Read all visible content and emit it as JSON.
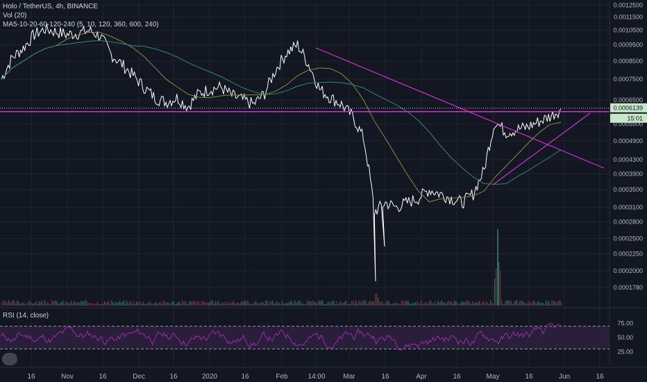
{
  "header": {
    "symbol_line": "Holo / TetherUS, 4h, BINANCE",
    "vol_line": "Vol (20)",
    "ma_line": "MA5-10-20-60-120-240 (5, 10, 120, 360, 600, 240)",
    "rsi_line": "RSI (14, close)"
  },
  "colors": {
    "background": "#131722",
    "price_line": "#ffffff",
    "ma_long": "#2e8c6e",
    "ma_mid": "#8c8c3e",
    "trendline": "#d631d6",
    "hline_solid": "#d631d6",
    "hline_dotted": "#c8c8c8",
    "rsi_line": "#9c2ab0",
    "rsi_band": "#2a1f3a",
    "grid": "#1f2330",
    "text": "#b2b5be",
    "price_badge": "#c8e6c9"
  },
  "price_axis": {
    "ticks": [
      "0.0012500",
      "0.0011500",
      "0.0010500",
      "0.0009500",
      "0.0008500",
      "0.0007500",
      "0.0006500",
      "0.0005500",
      "0.0004900",
      "0.0004300",
      "0.0003900",
      "0.0003500",
      "0.0003100",
      "0.0002800",
      "0.0002500",
      "0.0002250",
      "0.0002000",
      "0.0001780"
    ],
    "current_price": "0.0006139",
    "countdown": "15:01"
  },
  "rsi_axis": {
    "ticks": [
      "75.00",
      "50.00",
      "25.00"
    ]
  },
  "time_axis": {
    "ticks": [
      "16",
      "Nov",
      "16",
      "Dec",
      "16",
      "2020",
      "16",
      "Feb",
      "14:00",
      "Mar",
      "16",
      "Apr",
      "16",
      "May",
      "16",
      "Jun",
      "16"
    ]
  },
  "chart_data": {
    "type": "line",
    "series": [
      {
        "values": [
          0.00075,
          0.00087,
          0.00093,
          0.00102,
          0.00106,
          0.00104,
          0.00102,
          0.00103,
          0.00105,
          0.00101,
          0.00089,
          0.00083,
          0.00077,
          0.00071,
          0.00066,
          0.00064,
          0.00066,
          0.00062,
          0.00068,
          0.0007,
          0.00071,
          0.00067,
          0.00065,
          0.00063,
          0.00068,
          0.0008,
          0.0009,
          0.00095,
          0.00083,
          0.0007,
          0.00066,
          0.00063,
          0.00058,
          0.0005,
          0.0003,
          0.00032,
          0.00031,
          0.00032,
          0.00033,
          0.00035,
          0.00034,
          0.00033,
          0.00032,
          0.00034,
          0.0004,
          0.00056,
          0.00052,
          0.00053,
          0.00054,
          0.00056,
          0.00058,
          0.00061
        ]
      }
    ],
    "rsi": {
      "bands": [
        70,
        30
      ]
    }
  }
}
